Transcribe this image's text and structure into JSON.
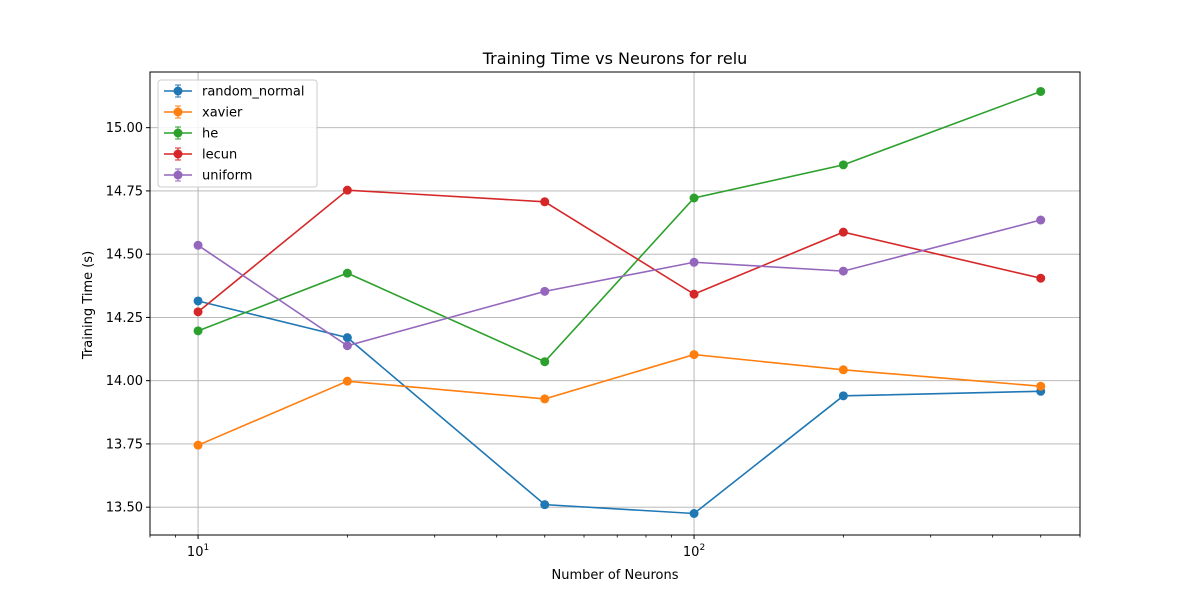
{
  "chart_data": {
    "type": "line",
    "title": "Training Time vs Neurons for relu",
    "xlabel": "Number of Neurons",
    "ylabel": "Training Time (s)",
    "xscale": "log",
    "xlim": [
      8.0,
      600
    ],
    "ylim": [
      13.39,
      15.22
    ],
    "x": [
      10,
      20,
      50,
      100,
      200,
      500
    ],
    "x_tick_labels": [
      {
        "value": 10,
        "base": "10",
        "exp": "1"
      },
      {
        "value": 100,
        "base": "10",
        "exp": "2"
      }
    ],
    "y_ticks": [
      13.5,
      13.75,
      14.0,
      14.25,
      14.5,
      14.75,
      15.0
    ],
    "y_tick_labels": [
      "13.50",
      "13.75",
      "14.00",
      "14.25",
      "14.50",
      "14.75",
      "15.00"
    ],
    "grid": true,
    "legend_position": "top-left",
    "series": [
      {
        "name": "random_normal",
        "color": "#1f77b4",
        "values": [
          14.315,
          14.17,
          13.51,
          13.475,
          13.94,
          13.958
        ]
      },
      {
        "name": "xavier",
        "color": "#ff7f0e",
        "values": [
          13.745,
          13.998,
          13.928,
          14.103,
          14.043,
          13.978
        ]
      },
      {
        "name": "he",
        "color": "#2ca02c",
        "values": [
          14.197,
          14.425,
          14.075,
          14.722,
          14.853,
          15.143
        ]
      },
      {
        "name": "lecun",
        "color": "#d62728",
        "values": [
          14.272,
          14.753,
          14.707,
          14.342,
          14.587,
          14.405
        ]
      },
      {
        "name": "uniform",
        "color": "#9467bd",
        "values": [
          14.535,
          14.138,
          14.353,
          14.468,
          14.433,
          14.635
        ]
      }
    ]
  }
}
